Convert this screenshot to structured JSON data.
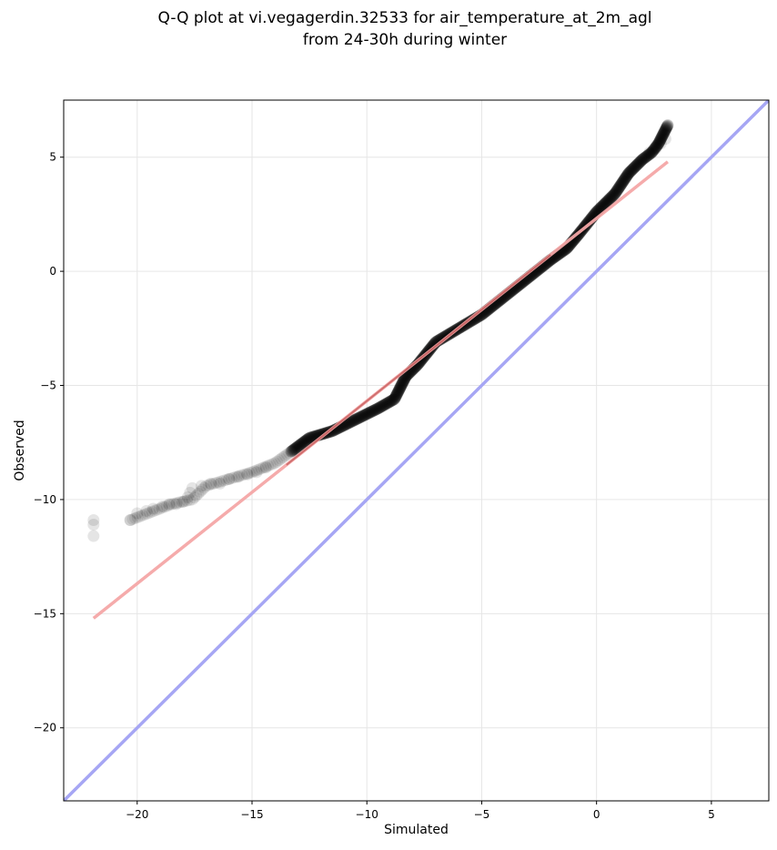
{
  "chart_data": {
    "type": "scatter",
    "title_line1": "Q-Q plot at vi.vegagerdin.32533 for air_temperature_at_2m_agl",
    "title_line2": "from 24-30h during winter",
    "xlabel": "Simulated",
    "ylabel": "Observed",
    "xlim": [
      -23.2,
      7.5
    ],
    "ylim": [
      -23.2,
      7.5
    ],
    "xticks": [
      -20,
      -15,
      -10,
      -5,
      0,
      5
    ],
    "yticks": [
      -20,
      -15,
      -10,
      -5,
      0,
      5
    ],
    "grid": true,
    "colors": {
      "points": "#000000",
      "fit_line": "#f4a6a6",
      "identity_line": "#a6a6f4",
      "fit_overlay": "#8b0000"
    },
    "fit_line": {
      "x": [
        -21.9,
        3.1
      ],
      "y": [
        -15.2,
        4.8
      ]
    },
    "identity_line": {
      "x": [
        -23.2,
        7.5
      ],
      "y": [
        -23.2,
        7.5
      ]
    },
    "curve": {
      "x": [
        -20.3,
        -18.5,
        -17.6,
        -17,
        -16,
        -15,
        -14,
        -13.3,
        -12.5,
        -11.5,
        -10.5,
        -9.5,
        -8.8,
        -8.3,
        -7.8,
        -7,
        -6,
        -5,
        -4,
        -3,
        -2,
        -1.3,
        -0.8,
        0,
        0.8,
        1.4,
        2,
        2.4,
        2.7,
        3.1
      ],
      "y": [
        -10.9,
        -10.2,
        -10.0,
        -9.4,
        -9.1,
        -8.8,
        -8.4,
        -7.9,
        -7.3,
        -7.0,
        -6.5,
        -6.0,
        -5.6,
        -4.6,
        -4.1,
        -3.1,
        -2.5,
        -1.9,
        -1.1,
        -0.3,
        0.5,
        1.0,
        1.6,
        2.6,
        3.4,
        4.3,
        4.9,
        5.2,
        5.6,
        6.4
      ]
    },
    "sparse_points": {
      "x": [
        -21.9,
        -21.9,
        -21.9,
        -20.3,
        -20.0,
        -19.6,
        -19.3,
        -18.9,
        -18.6,
        -18.3,
        -18.0,
        -17.8,
        -17.7,
        -17.6,
        -17.2,
        -16.8,
        -16.4,
        -16.0,
        -15.6,
        -15.2,
        -14.8,
        -14.4,
        2.3,
        2.6,
        2.8,
        3.0,
        3.1
      ],
      "y": [
        -11.6,
        -11.1,
        -10.9,
        -10.9,
        -10.6,
        -10.5,
        -10.4,
        -10.3,
        -10.2,
        -10.2,
        -10.1,
        -9.9,
        -9.7,
        -9.5,
        -9.4,
        -9.3,
        -9.3,
        -9.1,
        -9.0,
        -8.9,
        -8.8,
        -8.6,
        5.2,
        5.4,
        5.6,
        5.8,
        6.4
      ]
    }
  }
}
